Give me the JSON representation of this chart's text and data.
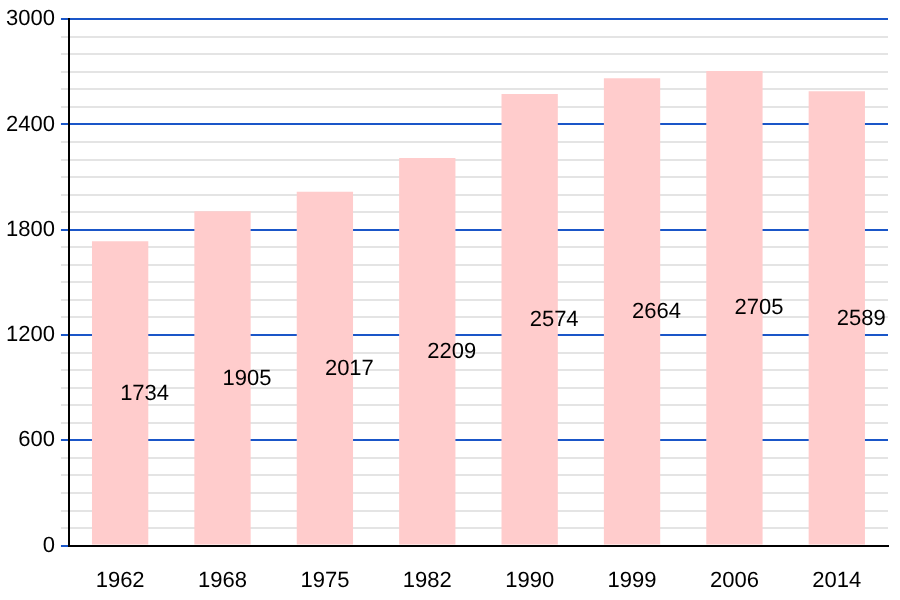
{
  "chart_data": {
    "type": "bar",
    "categories": [
      "1962",
      "1968",
      "1975",
      "1982",
      "1990",
      "1999",
      "2006",
      "2014"
    ],
    "values": [
      1734,
      1905,
      2017,
      2209,
      2574,
      2664,
      2705,
      2589
    ],
    "color": "#ffcccc",
    "data_labels": true,
    "grid": "y",
    "ylim": [
      0,
      3000
    ],
    "yticks": [
      0,
      {
        "value": 100,
        "label": null
      },
      {
        "value": 200,
        "label": null
      },
      {
        "value": 300,
        "label": null
      },
      {
        "value": 400,
        "label": null
      },
      {
        "value": 500,
        "label": null
      },
      600,
      {
        "value": 700,
        "label": null
      },
      {
        "value": 800,
        "label": null
      },
      {
        "value": 900,
        "label": null
      },
      {
        "value": 1000,
        "label": null
      },
      {
        "value": 1100,
        "label": null
      },
      1200,
      {
        "value": 1300,
        "label": null
      },
      {
        "value": 1400,
        "label": null
      },
      {
        "value": 1500,
        "label": null
      },
      {
        "value": 1600,
        "label": null
      },
      {
        "value": 1700,
        "label": null
      },
      1800,
      {
        "value": 1900,
        "label": null
      },
      {
        "value": 2000,
        "label": null
      },
      {
        "value": 2100,
        "label": null
      },
      {
        "value": 2200,
        "label": null
      },
      {
        "value": 2300,
        "label": null
      },
      2400,
      {
        "value": 2500,
        "label": null
      },
      {
        "value": 2600,
        "label": null
      },
      {
        "value": 2700,
        "label": null
      },
      {
        "value": 2800,
        "label": null
      },
      {
        "value": 2900,
        "label": null
      },
      3000
    ]
  }
}
